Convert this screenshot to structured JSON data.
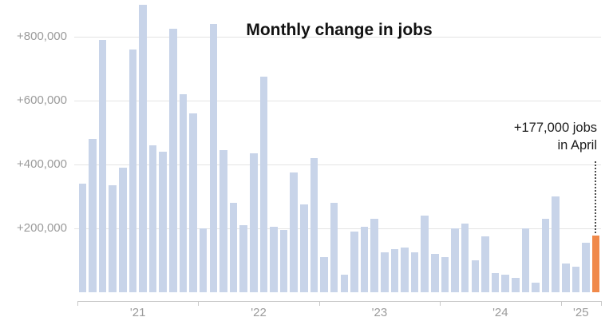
{
  "chart_data": {
    "type": "bar",
    "title": "Monthly change in jobs",
    "y_unit": "jobs",
    "months": [
      "2021-01",
      "2021-02",
      "2021-03",
      "2021-04",
      "2021-05",
      "2021-06",
      "2021-07",
      "2021-08",
      "2021-09",
      "2021-10",
      "2021-11",
      "2021-12",
      "2022-01",
      "2022-02",
      "2022-03",
      "2022-04",
      "2022-05",
      "2022-06",
      "2022-07",
      "2022-08",
      "2022-09",
      "2022-10",
      "2022-11",
      "2022-12",
      "2023-01",
      "2023-02",
      "2023-03",
      "2023-04",
      "2023-05",
      "2023-06",
      "2023-07",
      "2023-08",
      "2023-09",
      "2023-10",
      "2023-11",
      "2023-12",
      "2024-01",
      "2024-02",
      "2024-03",
      "2024-04",
      "2024-05",
      "2024-06",
      "2024-07",
      "2024-08",
      "2024-09",
      "2024-10",
      "2024-11",
      "2024-12",
      "2025-01",
      "2025-02",
      "2025-03",
      "2025-04"
    ],
    "values": [
      340000,
      480000,
      790000,
      335000,
      390000,
      760000,
      900000,
      460000,
      440000,
      825000,
      620000,
      560000,
      200000,
      840000,
      445000,
      280000,
      210000,
      435000,
      675000,
      205000,
      195000,
      375000,
      275000,
      420000,
      110000,
      280000,
      55000,
      190000,
      205000,
      230000,
      125000,
      135000,
      140000,
      125000,
      240000,
      120000,
      110000,
      200000,
      215000,
      100000,
      175000,
      60000,
      55000,
      45000,
      200000,
      30000,
      230000,
      300000,
      90000,
      80000,
      155000,
      177000
    ],
    "highlight": {
      "index": 51,
      "value": 177000
    },
    "y_ticks": {
      "values": [
        200000,
        400000,
        600000,
        800000
      ],
      "labels": [
        "+200,000",
        "+400,000",
        "+600,000",
        "+800,000"
      ]
    },
    "x_ticks": {
      "year_labels": [
        "'21",
        "'22",
        "'23",
        "'24",
        "'25"
      ],
      "label_month_centers": [
        6,
        18,
        30,
        42,
        50
      ],
      "tick_month_indices": [
        0,
        12,
        24,
        36,
        48,
        52
      ]
    },
    "ylim": [
      0,
      920000
    ],
    "grid": true,
    "legend": "none",
    "colors": {
      "bar": "#c8d4e9",
      "highlight": "#f0894a",
      "gridline": "#e4e4e4",
      "axis": "#c9c9c9",
      "tick_label": "#9b9b9b",
      "title": "#121212",
      "annotation": "#1c1c1c"
    }
  },
  "annotation": {
    "line1": "+177,000 jobs",
    "line2": "in April"
  }
}
